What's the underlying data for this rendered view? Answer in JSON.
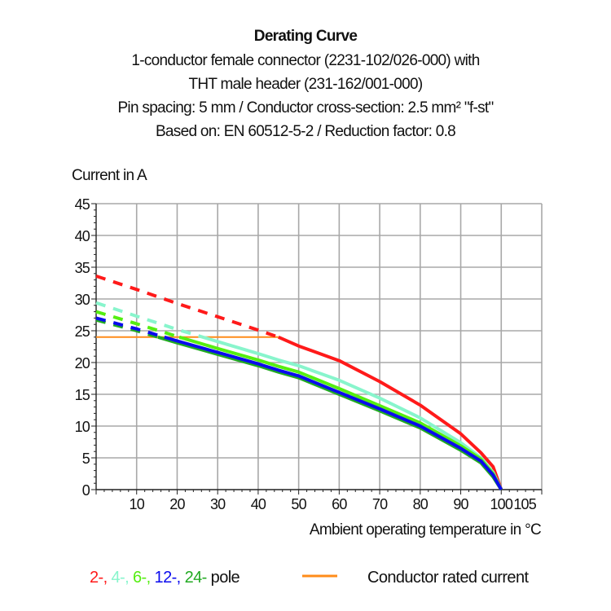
{
  "chart_data": {
    "type": "line",
    "title": "Derating Curve",
    "subtitle": [
      "1-conductor female connector (2231-102/026-000) with",
      "THT male header (231-162/001-000)",
      "Pin spacing: 5 mm / Conductor cross-section: 2.5 mm² \"f-st\"",
      "Based on: EN 60512-5-2 / Reduction factor: 0.8"
    ],
    "ylabel": "Current in A",
    "xlabel": "Ambient operating temperature in °C",
    "xlim": [
      0,
      110
    ],
    "ylim": [
      0,
      45
    ],
    "xticks": [
      10,
      20,
      30,
      40,
      50,
      60,
      70,
      80,
      90,
      100,
      105
    ],
    "yticks": [
      0,
      5,
      10,
      15,
      20,
      25,
      30,
      35,
      40,
      45
    ],
    "grid": true,
    "x": [
      0,
      10,
      20,
      30,
      40,
      45,
      50,
      60,
      70,
      80,
      90,
      95,
      98,
      100
    ],
    "series": [
      {
        "name": "2-",
        "color": "#ff1a1a",
        "values": [
          33.6,
          31.5,
          29.3,
          27.2,
          25.1,
          24.0,
          22.6,
          20.3,
          17.0,
          13.3,
          8.8,
          5.8,
          3.6,
          0
        ]
      },
      {
        "name": "4-",
        "color": "#88f5cc",
        "values": [
          29.4,
          27.3,
          25.2,
          23.3,
          21.4,
          20.4,
          19.5,
          17.2,
          14.4,
          11.3,
          7.4,
          5.0,
          2.7,
          0
        ]
      },
      {
        "name": "6-",
        "color": "#55ee11",
        "values": [
          28.0,
          26.1,
          24.1,
          22.2,
          20.4,
          19.4,
          18.5,
          15.9,
          13.2,
          10.5,
          6.9,
          4.8,
          2.5,
          0
        ]
      },
      {
        "name": "24-",
        "color": "#22aa22",
        "values": [
          26.7,
          25.0,
          23.1,
          21.3,
          19.5,
          18.5,
          17.6,
          15.0,
          12.4,
          9.7,
          6.2,
          4.2,
          2.0,
          0
        ]
      },
      {
        "name": "12-",
        "color": "#0a0aee",
        "values": [
          27.0,
          25.3,
          23.4,
          21.6,
          19.8,
          18.8,
          17.9,
          15.3,
          12.7,
          10.0,
          6.5,
          4.5,
          2.3,
          0
        ]
      }
    ],
    "rated_current": {
      "name": "Conductor rated current",
      "color": "#ff8c1a",
      "value": 24,
      "x_range": [
        0,
        45
      ]
    },
    "dashed_above_rated_current": true,
    "legend": {
      "placement": "bottom",
      "entries": [
        {
          "label": "2-,",
          "color": "#ff1a1a"
        },
        {
          "label": "4-,",
          "color": "#88f5cc"
        },
        {
          "label": "6-,",
          "color": "#55ee11"
        },
        {
          "label": "12-,",
          "color": "#0a0aee"
        },
        {
          "label": "24-",
          "color": "#22aa22"
        }
      ],
      "suffix": "pole",
      "rated_label": "Conductor rated current"
    }
  }
}
